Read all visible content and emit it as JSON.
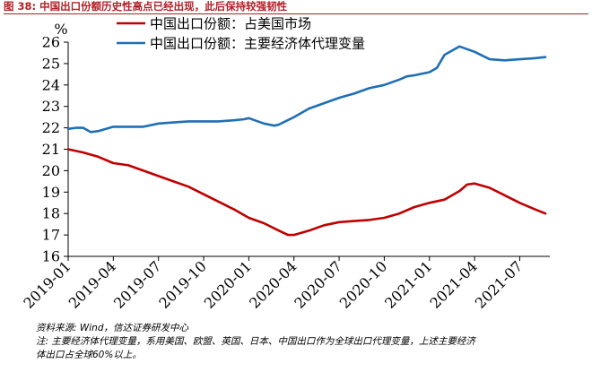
{
  "figure_title": "图 38:  中国出口份额历史性高点已经出现，此后保持较强韧性",
  "source": "资料来源: Wind，信达证券研发中心",
  "note_line1": "注: 主要经济体代理变量，系用美国、欧盟、英国、日本、中国出口作为全球出口代理变量，上述主要经济",
  "note_line2": "体出口占全球60%以上。",
  "chart_data": {
    "type": "line",
    "ylabel": "%",
    "ylim": [
      16,
      26
    ],
    "yticks": [
      16,
      17,
      18,
      19,
      20,
      21,
      22,
      23,
      24,
      25,
      26
    ],
    "xlim": [
      0,
      32
    ],
    "x_tick_labels": [
      "2019-01",
      "2019-04",
      "2019-07",
      "2019-10",
      "2020-01",
      "2020-04",
      "2020-07",
      "2020-10",
      "2021-01",
      "2021-04",
      "2021-07"
    ],
    "x_tick_positions": [
      0,
      3,
      6,
      9,
      12,
      15,
      18,
      21,
      24,
      27,
      30
    ],
    "legend_position": "top-center",
    "grid": false,
    "series": [
      {
        "name": "中国出口份额：占美国市场",
        "color": "#c00000",
        "x": [
          0,
          1,
          2,
          3,
          4,
          5,
          6,
          7,
          8,
          9,
          10,
          11,
          12,
          13,
          14,
          14.6,
          15,
          16,
          17,
          18,
          19,
          20,
          21,
          22,
          23,
          24,
          25,
          26,
          26.5,
          27,
          28,
          29,
          30,
          31,
          31.7
        ],
        "values": [
          21.0,
          20.85,
          20.65,
          20.35,
          20.25,
          20.0,
          19.75,
          19.5,
          19.25,
          18.9,
          18.55,
          18.2,
          17.8,
          17.55,
          17.2,
          17.0,
          17.0,
          17.2,
          17.45,
          17.6,
          17.65,
          17.7,
          17.8,
          18.0,
          18.3,
          18.5,
          18.65,
          19.05,
          19.35,
          19.4,
          19.2,
          18.85,
          18.5,
          18.2,
          18.0
        ]
      },
      {
        "name": "中国出口份额：主要经济体代理变量",
        "color": "#1f6fb5",
        "x": [
          0,
          0.5,
          1,
          1.5,
          2,
          3,
          4,
          5,
          6,
          7,
          8,
          9,
          10,
          11,
          11.7,
          12,
          13,
          13.7,
          14,
          15,
          16,
          17,
          18,
          19,
          20,
          21,
          22,
          22.5,
          23,
          24,
          24.5,
          25,
          26,
          27,
          28,
          29,
          30,
          31,
          31.7
        ],
        "values": [
          21.95,
          22.0,
          22.0,
          21.8,
          21.85,
          22.05,
          22.05,
          22.05,
          22.2,
          22.25,
          22.3,
          22.3,
          22.3,
          22.35,
          22.4,
          22.45,
          22.2,
          22.1,
          22.15,
          22.5,
          22.9,
          23.15,
          23.4,
          23.6,
          23.85,
          24.0,
          24.25,
          24.4,
          24.45,
          24.6,
          24.8,
          25.4,
          25.8,
          25.55,
          25.2,
          25.15,
          25.2,
          25.25,
          25.3
        ]
      }
    ]
  }
}
